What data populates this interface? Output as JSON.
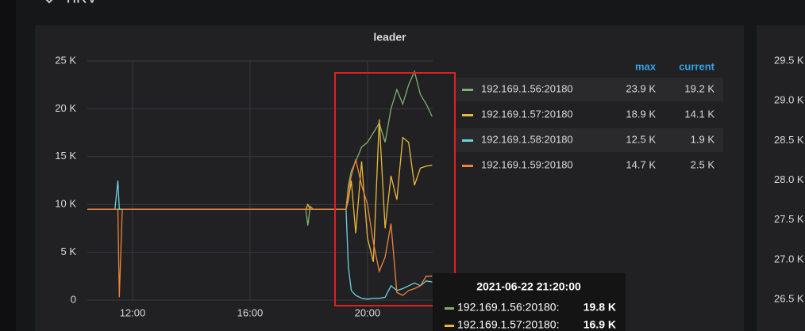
{
  "section_title": "TiKV",
  "chart_data": {
    "type": "line",
    "title": "leader",
    "x": [
      10.46,
      11.4,
      11.5,
      11.55,
      11.65,
      17.9,
      17.97,
      18.05,
      18.15,
      19.27,
      19.35,
      19.45,
      19.6,
      19.8,
      20.0,
      20.2,
      20.4,
      20.6,
      20.8,
      21.0,
      21.2,
      21.4,
      21.6,
      21.8,
      22.0,
      22.2
    ],
    "xlim": [
      10.46,
      22.22
    ],
    "xticks": [
      {
        "value": 12,
        "label": "12:00"
      },
      {
        "value": 16,
        "label": "16:00"
      },
      {
        "value": 20,
        "label": "20:00"
      }
    ],
    "ylim": [
      0,
      25000
    ],
    "yticks": [
      0,
      {
        "value": 5000,
        "label": "5 K"
      },
      {
        "value": 10000,
        "label": "10 K"
      },
      {
        "value": 15000,
        "label": "15 K"
      },
      {
        "value": 20000,
        "label": "20 K"
      },
      {
        "value": 25000,
        "label": "25 K"
      }
    ],
    "grid": true,
    "legend_columns": [
      "max",
      "current"
    ],
    "series": [
      {
        "name": "192.169.1.56:20180",
        "color": "#7eb26d",
        "max": "23.9 K",
        "current": "19.2 K",
        "values": [
          9500,
          9500,
          9500,
          9500,
          9500,
          9500,
          7800,
          9800,
          9500,
          9500,
          12000,
          13500,
          14500,
          16000,
          16500,
          17500,
          18500,
          16500,
          20000,
          22000,
          20500,
          22500,
          23900,
          21500,
          20500,
          19200
        ]
      },
      {
        "name": "192.169.1.57:20180",
        "color": "#eab839",
        "max": "18.9 K",
        "current": "14.1 K",
        "values": [
          9500,
          9500,
          9500,
          9500,
          9500,
          9500,
          10000,
          9500,
          9500,
          9500,
          10500,
          12500,
          7000,
          14500,
          6500,
          4000,
          18900,
          7500,
          13000,
          10500,
          17000,
          16500,
          12000,
          13800,
          14000,
          14100
        ]
      },
      {
        "name": "192.169.1.58:20180",
        "color": "#6ed0e0",
        "max": "12.5 K",
        "current": "1.9 K",
        "values": [
          9500,
          9500,
          12500,
          9500,
          9500,
          9500,
          9500,
          9500,
          9500,
          9500,
          3500,
          1000,
          500,
          200,
          100,
          200,
          200,
          300,
          1500,
          1000,
          1200,
          1500,
          1800,
          1500,
          2000,
          1900
        ]
      },
      {
        "name": "192.169.1.59:20180",
        "color": "#ef843c",
        "max": "14.7 K",
        "current": "2.5 K",
        "values": [
          9500,
          9500,
          9500,
          300,
          9500,
          9500,
          9500,
          9500,
          9500,
          9500,
          11500,
          13000,
          14700,
          12000,
          10000,
          6000,
          3000,
          4500,
          8000,
          800,
          500,
          1000,
          1200,
          1500,
          2500,
          2500
        ]
      }
    ],
    "tooltip": {
      "title": "2021-06-22 21:20:00",
      "rows": [
        {
          "name": "192.169.1.56:20180:",
          "value": "19.8 K"
        },
        {
          "name": "192.169.1.57:20180:",
          "value": "16.9 K"
        }
      ]
    }
  },
  "right_panel": {
    "ytick_labels": [
      "29.5 K",
      "29.0 K",
      "28.5 K",
      "28.0 K",
      "27.5 K",
      "27.0 K",
      "26.5 K"
    ]
  }
}
